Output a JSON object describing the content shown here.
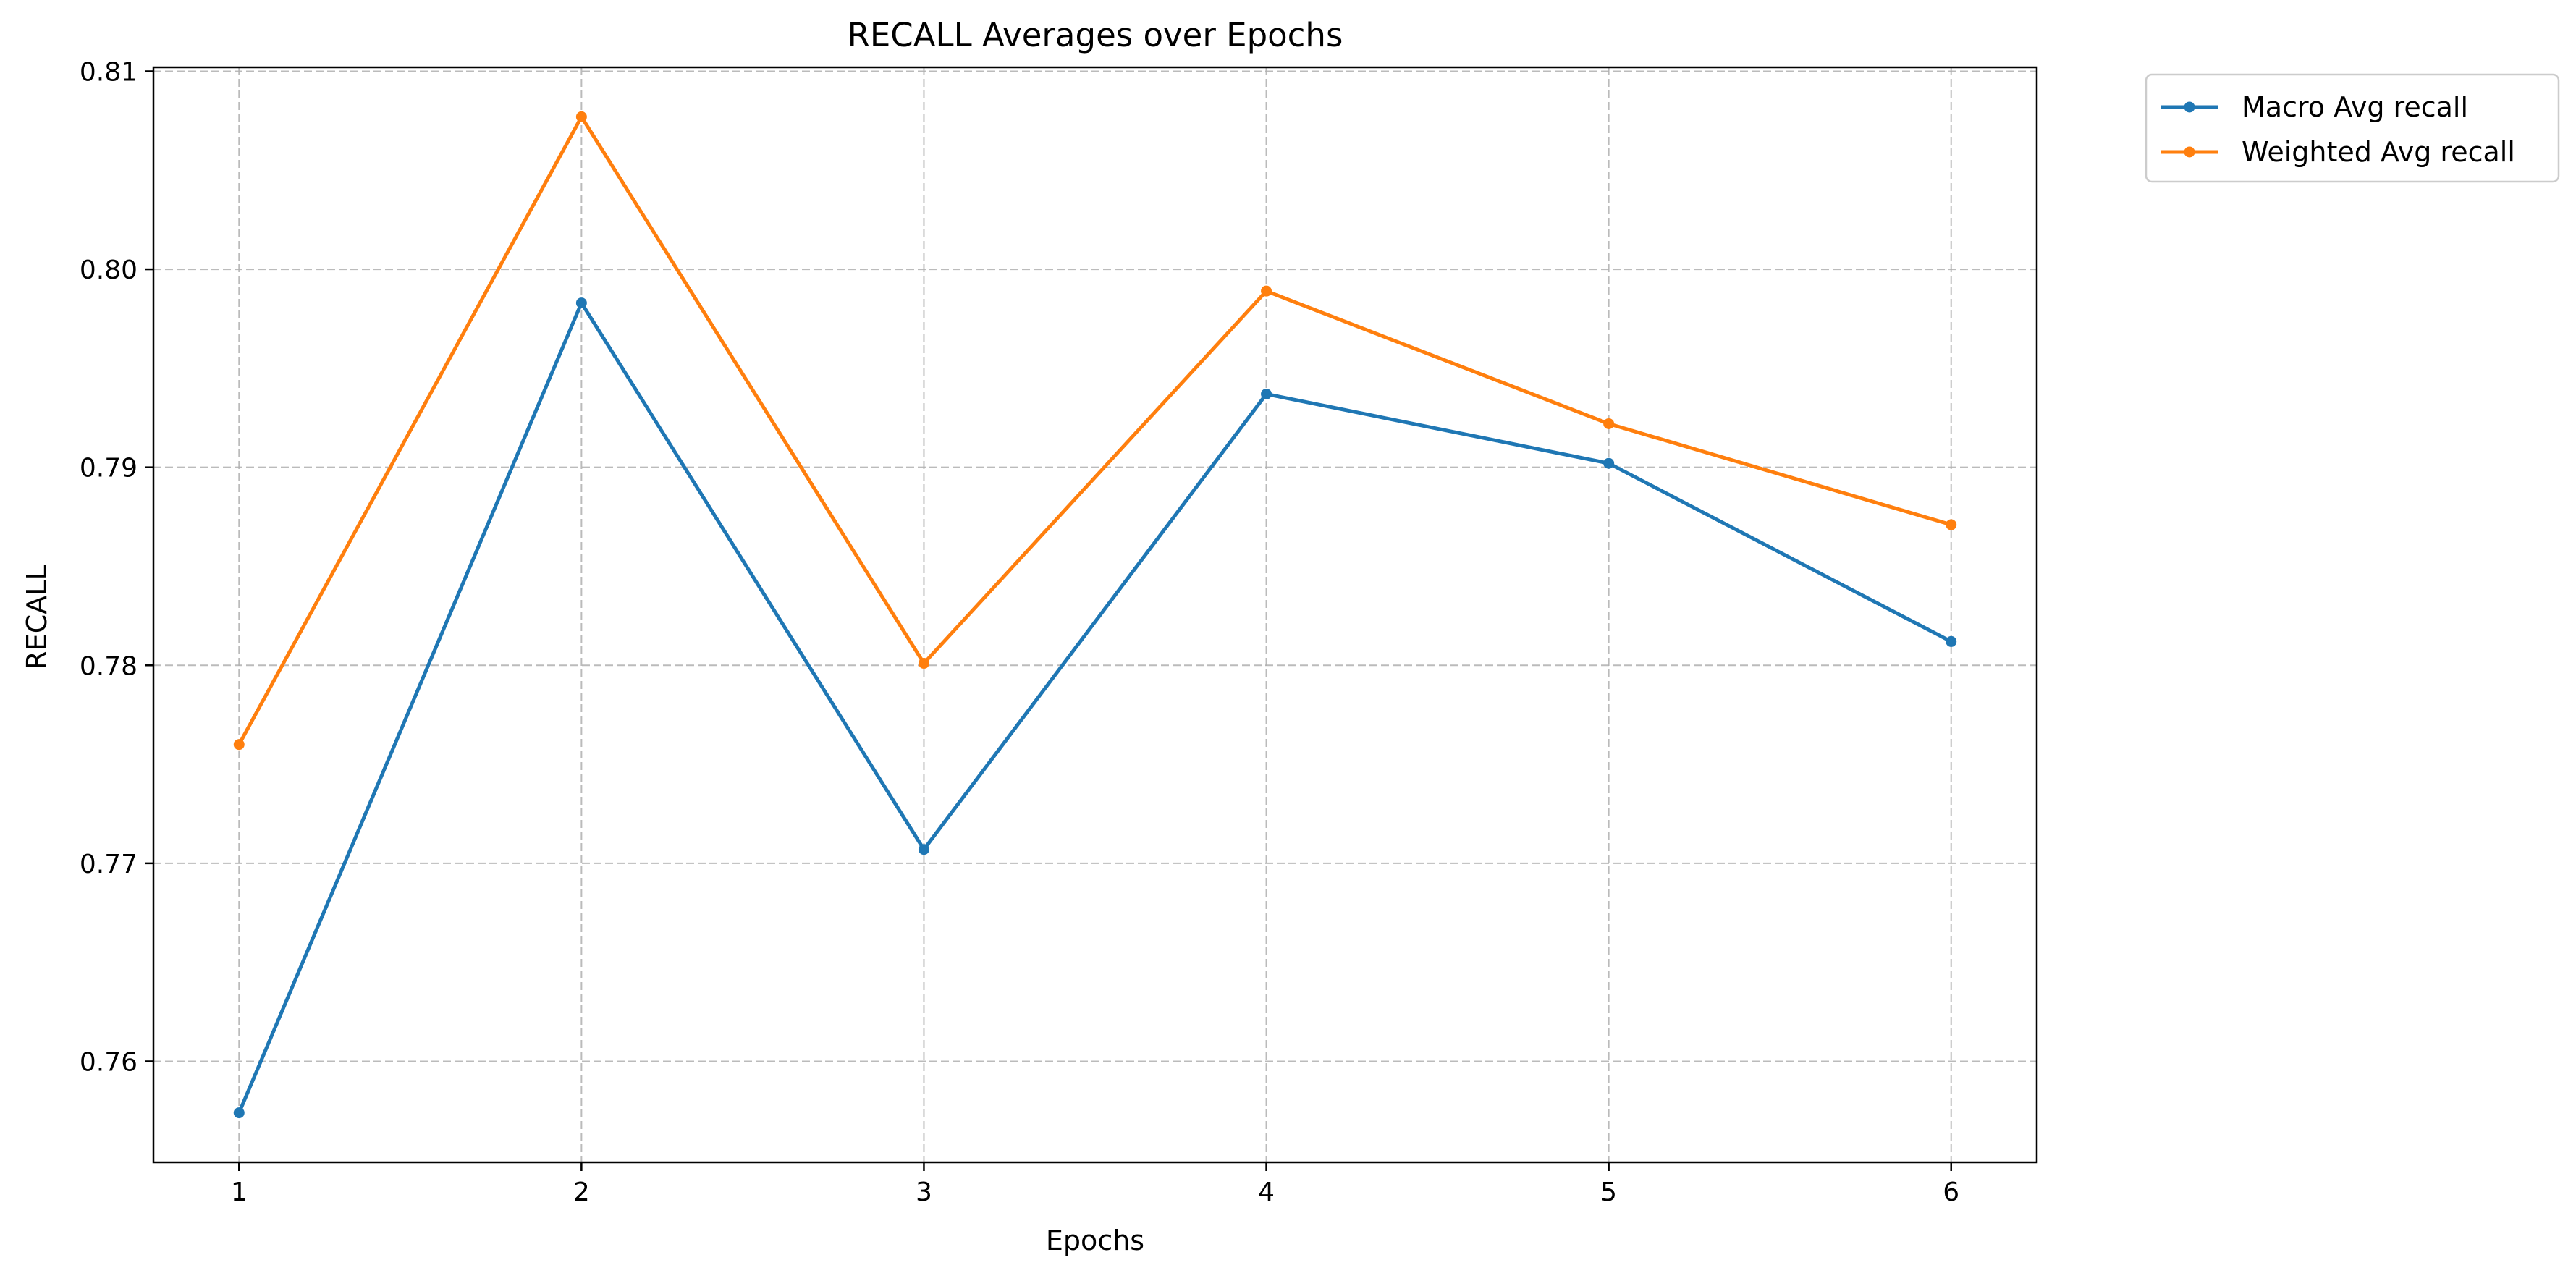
{
  "chart_data": {
    "type": "line",
    "title": "RECALL Averages over Epochs",
    "xlabel": "Epochs",
    "ylabel": "RECALL",
    "x": [
      1,
      2,
      3,
      4,
      5,
      6
    ],
    "xlim": [
      0.75,
      6.25
    ],
    "ylim": [
      0.7549,
      0.8102
    ],
    "x_ticks": [
      1,
      2,
      3,
      4,
      5,
      6
    ],
    "x_tick_labels": [
      "1",
      "2",
      "3",
      "4",
      "5",
      "6"
    ],
    "y_ticks": [
      0.76,
      0.77,
      0.78,
      0.79,
      0.8,
      0.81
    ],
    "y_tick_labels": [
      "0.76",
      "0.77",
      "0.78",
      "0.79",
      "0.80",
      "0.81"
    ],
    "grid": true,
    "grid_style": "dashed",
    "legend_position": "outside-top-right",
    "series": [
      {
        "name": "Macro Avg recall",
        "color": "#1f77b4",
        "marker": "circle",
        "values": [
          0.7574,
          0.7983,
          0.7707,
          0.7937,
          0.7902,
          0.7812
        ]
      },
      {
        "name": "Weighted Avg recall",
        "color": "#ff7f0e",
        "marker": "circle",
        "values": [
          0.776,
          0.8077,
          0.7801,
          0.7989,
          0.7922,
          0.7871
        ]
      }
    ]
  }
}
